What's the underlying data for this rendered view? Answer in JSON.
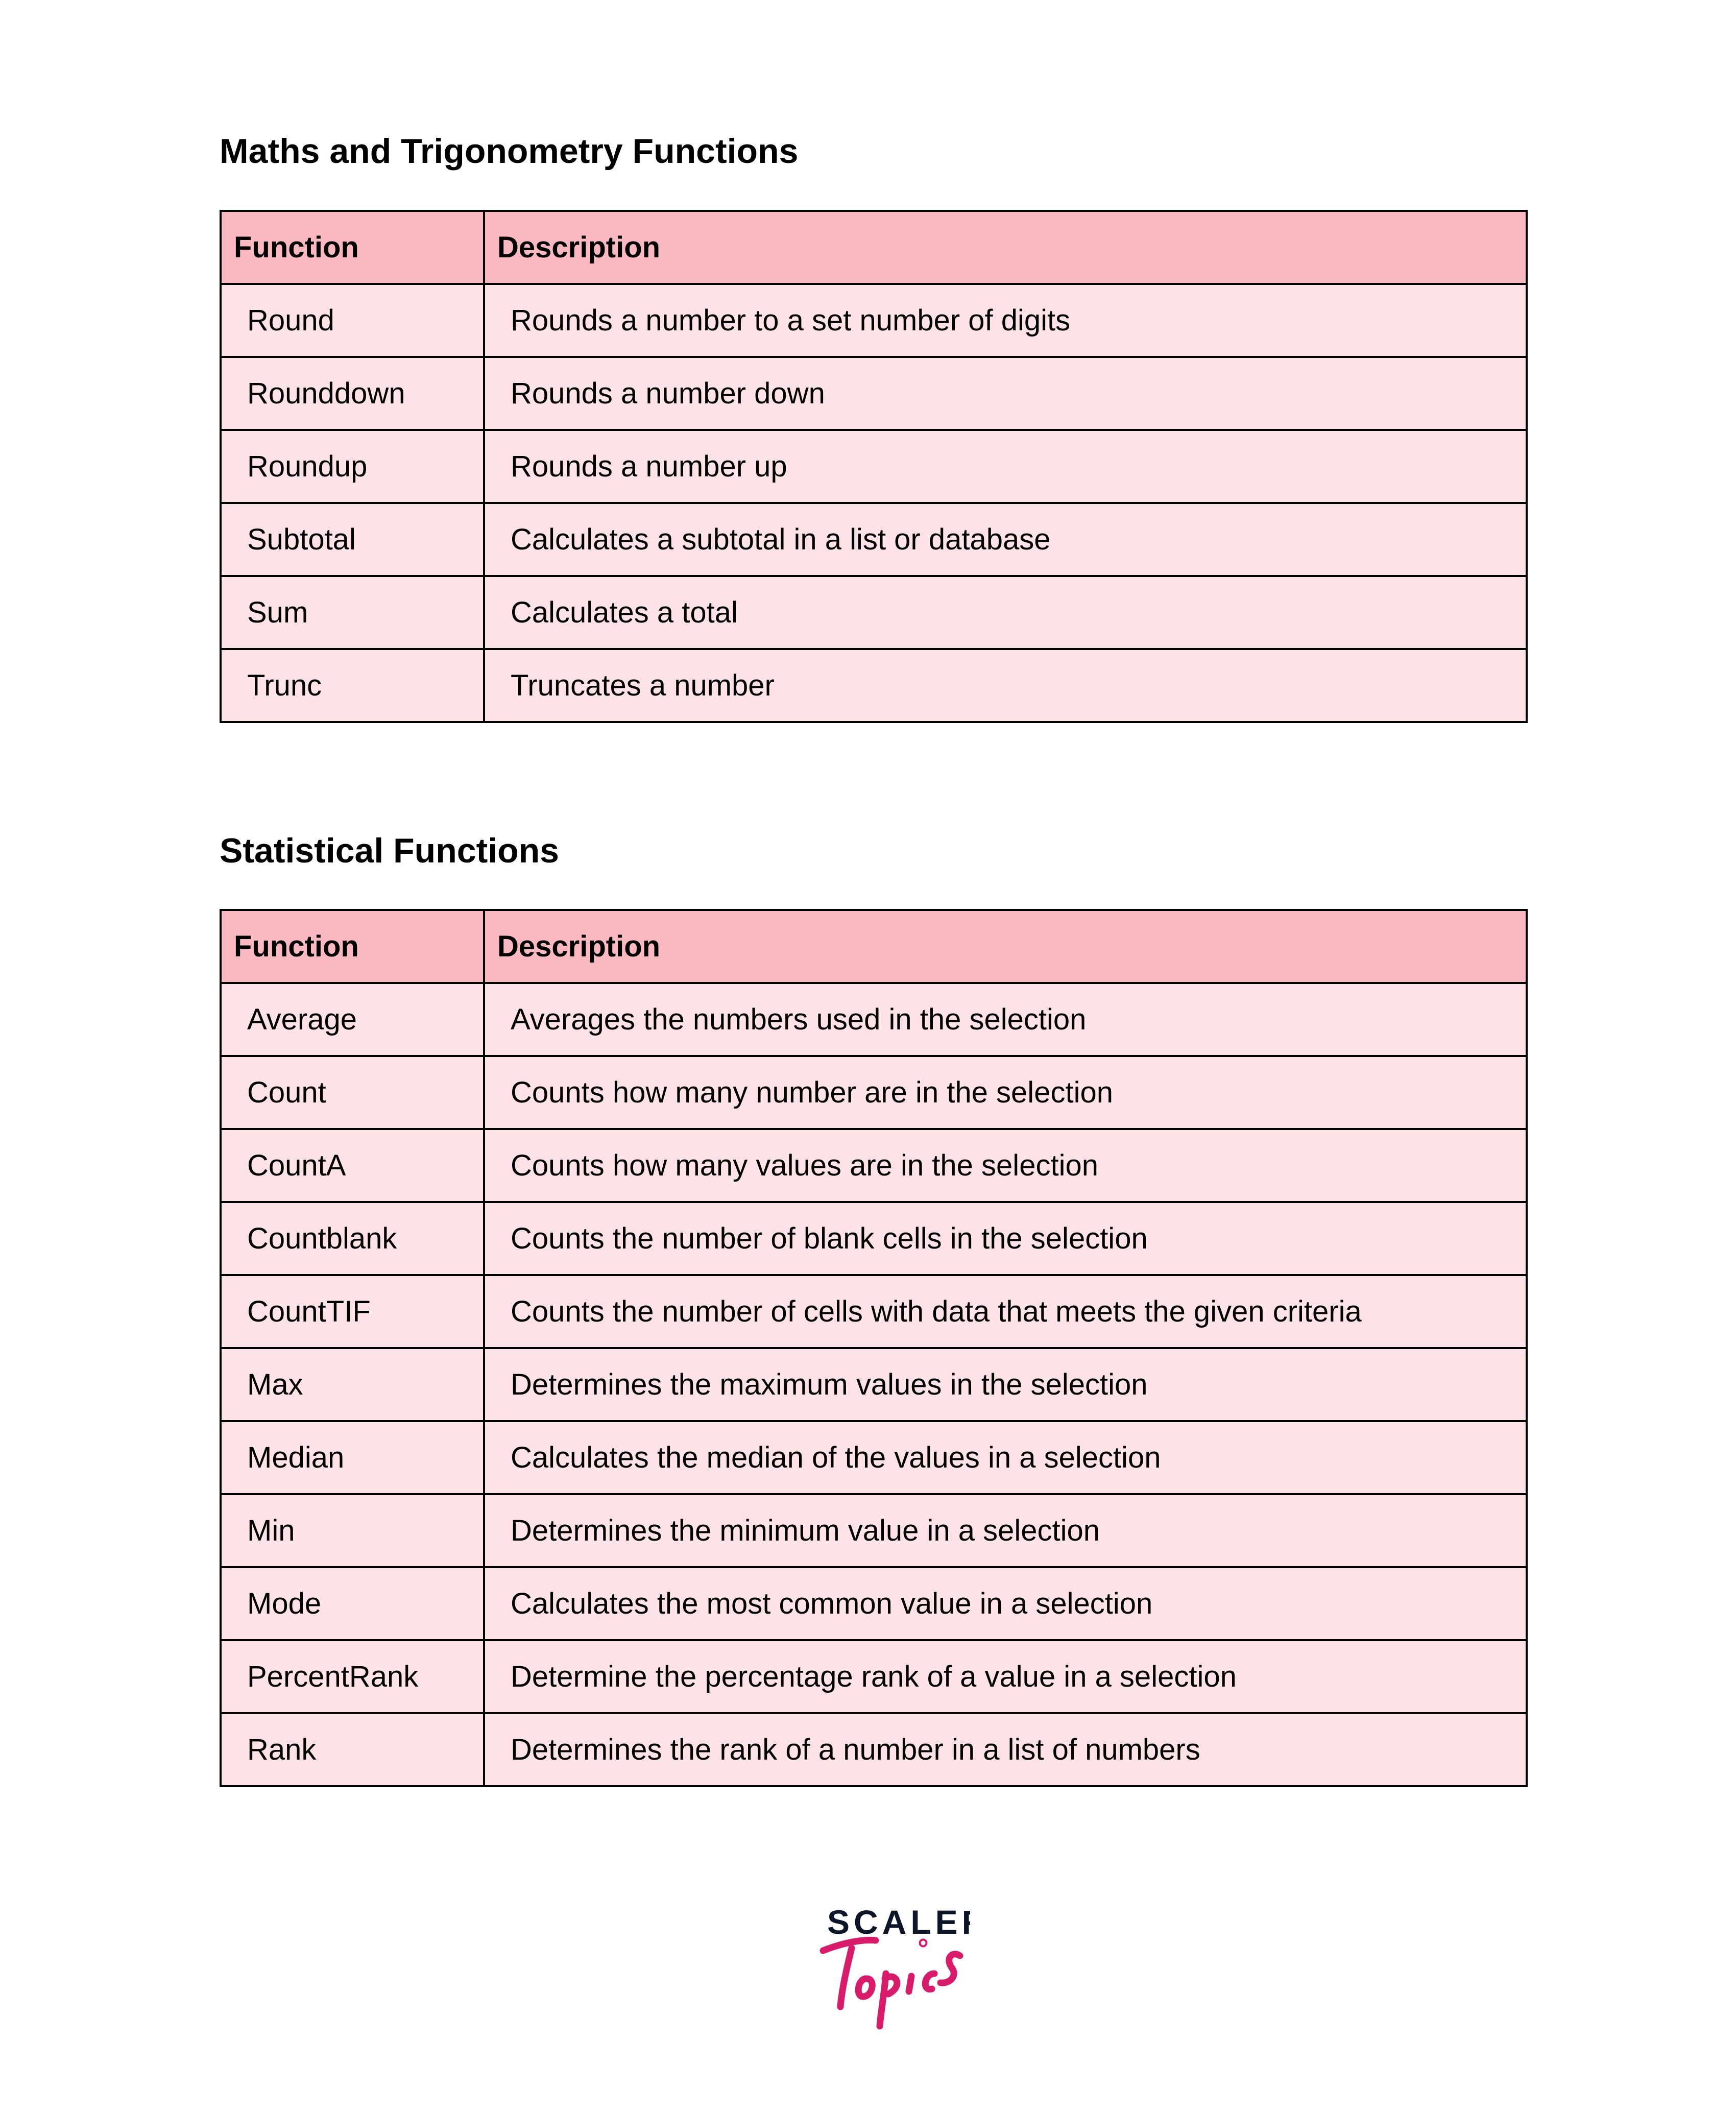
{
  "sections": [
    {
      "title": "Maths and Trigonometry Functions",
      "headers": [
        "Function",
        "Description"
      ],
      "rows": [
        [
          "Round",
          "Rounds a number to a set number of digits"
        ],
        [
          "Rounddown",
          "Rounds a number down"
        ],
        [
          "Roundup",
          "Rounds a number up"
        ],
        [
          "Subtotal",
          "Calculates a subtotal in a list or database"
        ],
        [
          "Sum",
          "Calculates a total"
        ],
        [
          "Trunc",
          "Truncates a number"
        ]
      ]
    },
    {
      "title": "Statistical Functions",
      "headers": [
        "Function",
        "Description"
      ],
      "rows": [
        [
          "Average",
          "Averages the numbers used in the selection"
        ],
        [
          "Count",
          "Counts how many number are in the selection"
        ],
        [
          "CountA",
          "Counts how many values are in the selection"
        ],
        [
          "Countblank",
          "Counts the number of blank cells in the selection"
        ],
        [
          "CountTIF",
          "Counts the number of cells with data that meets the given criteria"
        ],
        [
          "Max",
          "Determines the maximum values in the selection"
        ],
        [
          "Median",
          "Calculates the median of the values in a selection"
        ],
        [
          "Min",
          "Determines the minimum value in a selection"
        ],
        [
          "Mode",
          "Calculates the most common value in a selection"
        ],
        [
          "PercentRank",
          "Determine the percentage rank of a value in a selection"
        ],
        [
          "Rank",
          "Determines the rank of a number in a list of numbers"
        ]
      ]
    }
  ],
  "logo": {
    "line1": "SCALER",
    "line2": "Topics"
  },
  "colors": {
    "header_bg": "#fab8c0",
    "row_bg": "#fde3e8",
    "logo_dark": "#0d1628",
    "logo_pink": "#d81b6a"
  }
}
